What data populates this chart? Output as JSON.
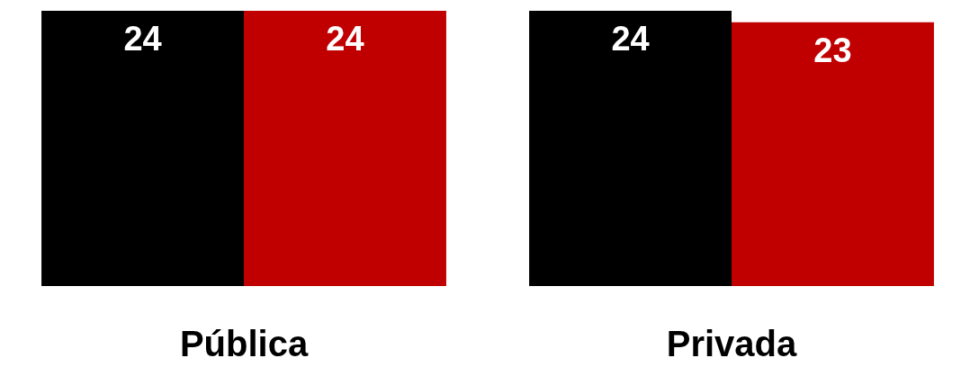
{
  "chart_data": {
    "type": "bar",
    "categories": [
      "Pública",
      "Privada"
    ],
    "series": [
      {
        "color": "#000000",
        "values": [
          24,
          24
        ]
      },
      {
        "color": "#c00000",
        "values": [
          24,
          23
        ]
      }
    ],
    "data_labels": true
  }
}
